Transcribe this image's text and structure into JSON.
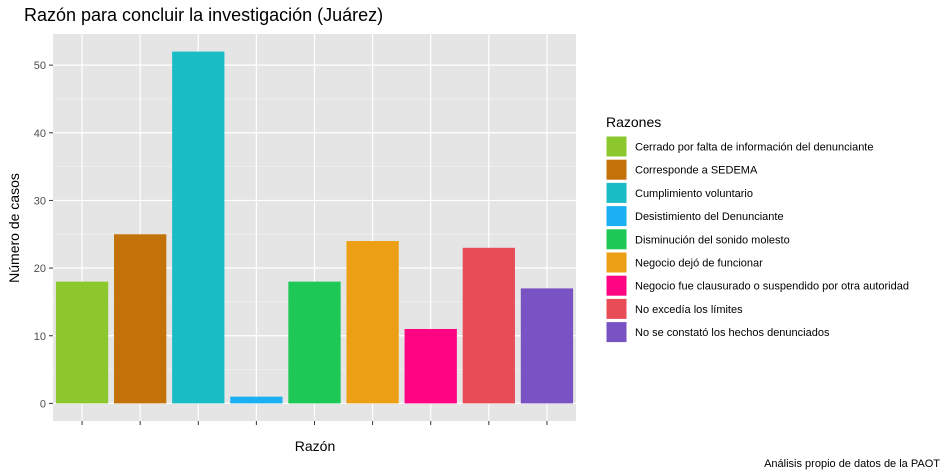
{
  "chart_data": {
    "type": "bar",
    "title": "Razón para concluir la investigación  (Juárez)",
    "xlabel": "Razón",
    "ylabel": "Número de casos",
    "caption": "Análisis propio de datos de la PAOT",
    "ylim": [
      -2.6,
      54.6
    ],
    "yticks": [
      0,
      10,
      20,
      30,
      40,
      50
    ],
    "grid": true,
    "legend": {
      "title": "Razones",
      "position": "right"
    },
    "categories": [
      "Cerrado por falta de información del denunciante",
      "Corresponde a SEDEMA",
      "Cumplimiento voluntario",
      "Desistimiento del Denunciante",
      "Disminución del sonido molesto",
      "Negocio dejó de funcionar",
      "Negocio fue clausurado o suspendido por otra autoridad",
      "No excedía los límites",
      "No se constató los hechos denunciados"
    ],
    "values": [
      18,
      25,
      52,
      1,
      18,
      24,
      11,
      23,
      17
    ],
    "colors": [
      "#8DC72E",
      "#C27208",
      "#1ABCC5",
      "#1BB0F3",
      "#1DC857",
      "#EC9F15",
      "#FF0584",
      "#E84D57",
      "#7952C4"
    ]
  }
}
